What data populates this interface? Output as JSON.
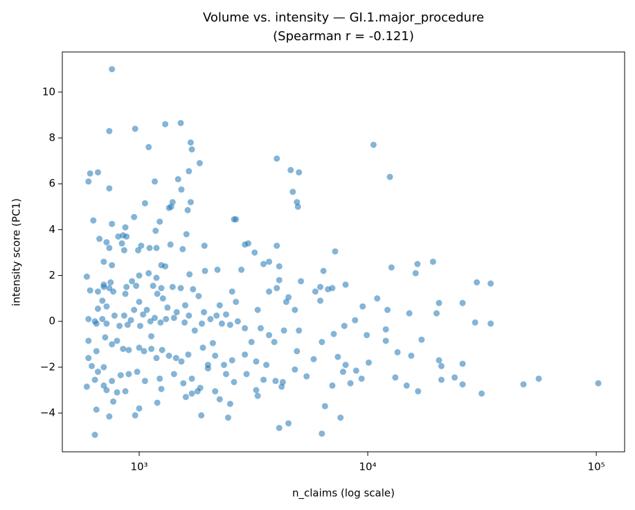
{
  "chart_data": {
    "type": "scatter",
    "title": "Volume vs. intensity — GI.1.major_procedure",
    "subtitle": "(Spearman r = -0.121)",
    "x_label": "n_claims (log scale)",
    "y_label": "intensity score (PC1)",
    "xscale": "log",
    "xlim": [
      461,
      133000
    ],
    "ylim": [
      -5.69,
      11.75
    ],
    "xticks": [
      {
        "value": 1000,
        "label": "10³"
      },
      {
        "value": 10000,
        "label": "10⁴"
      },
      {
        "value": 100000,
        "label": "10⁵"
      }
    ],
    "yticks": [
      {
        "value": -4,
        "label": "−4"
      },
      {
        "value": -2,
        "label": "−2"
      },
      0,
      2,
      4,
      6,
      8,
      10
    ],
    "grid": false,
    "x": [
      760,
      740,
      960,
      1300,
      1520,
      1680,
      1700,
      1100,
      10600,
      4000,
      12500,
      4600,
      5000,
      660,
      610,
      600,
      1170,
      1480,
      1650,
      1840,
      740,
      1530,
      4700,
      4900,
      4950,
      1060,
      1350,
      1380,
      1400,
      1680,
      1630,
      630,
      760,
      950,
      1230,
      2600,
      2650,
      870,
      1180,
      670,
      810,
      850,
      880,
      1610,
      720,
      840,
      1020,
      990,
      1370,
      1550,
      1930,
      2900,
      3000,
      4000,
      7200,
      3200,
      740,
      860,
      1110,
      1190,
      1300,
      1250,
      700,
      760,
      3500,
      3700,
      4100,
      6400,
      12700,
      16500,
      19300,
      16200,
      1940,
      2200,
      2800,
      1100,
      590,
      1000,
      1190,
      1250,
      1520,
      1660,
      4100,
      5100,
      8000,
      30000,
      34500,
      4000,
      5900,
      6200,
      6700,
      7000,
      700,
      740,
      610,
      660,
      700,
      750,
      770,
      880,
      930,
      970,
      1150,
      1200,
      1400,
      1720,
      2550,
      3700,
      11000,
      12200,
      9500,
      20500,
      26000,
      4500,
      4400,
      6200,
      4800,
      3300,
      2650,
      2250,
      1820,
      1590,
      1330,
      1270,
      1000,
      950,
      870,
      860,
      720,
      660,
      690,
      600,
      640,
      650,
      690,
      720,
      780,
      820,
      890,
      920,
      1010,
      1040,
      1080,
      1120,
      1130,
      1170,
      1240,
      1310,
      1420,
      1460,
      1580,
      1650,
      1750,
      1880,
      1920,
      2050,
      2180,
      2300,
      2400,
      2500,
      2700,
      2900,
      3100,
      3400,
      3700,
      3900,
      4300,
      5000,
      6300,
      7100,
      7900,
      8800,
      9900,
      17200,
      20000,
      15200,
      29500,
      34500,
      12000,
      600,
      650,
      710,
      760,
      800,
      850,
      900,
      1000,
      1050,
      1130,
      1190,
      1260,
      1350,
      1450,
      1530,
      1640,
      1900,
      2000,
      2150,
      2350,
      2550,
      2900,
      3250,
      3600,
      4900,
      5800,
      7400,
      8000,
      8900,
      10100,
      12000,
      13500,
      15500,
      20500,
      21000,
      26000,
      600,
      620,
      660,
      700,
      760,
      830,
      900,
      980,
      1060,
      1230,
      1420,
      1560,
      1700,
      1850,
      2000,
      2150,
      2400,
      2600,
      2950,
      3250,
      3500,
      3950,
      4200,
      4800,
      5400,
      7000,
      7800,
      8400,
      9400,
      13200,
      14800,
      16600,
      21000,
      24000,
      26000,
      31500,
      48000,
      56000,
      102000,
      590,
      640,
      700,
      720,
      800,
      870,
      1250,
      1600,
      1800,
      2250,
      2500,
      3300,
      4250,
      6500,
      7600,
      650,
      740,
      960,
      1000,
      1200,
      1870,
      2450,
      4100,
      4500,
      640,
      6300,
      770,
      1700,
      2100
    ],
    "series": [
      {
        "color": "#1f77b4",
        "values": [
          11.0,
          8.3,
          8.4,
          8.6,
          8.65,
          7.8,
          7.5,
          7.6,
          7.7,
          7.1,
          6.3,
          6.6,
          6.5,
          6.5,
          6.45,
          6.1,
          6.1,
          6.2,
          6.55,
          6.9,
          5.8,
          5.75,
          5.65,
          5.2,
          5.0,
          5.15,
          4.95,
          5.0,
          5.2,
          5.2,
          4.85,
          4.4,
          4.25,
          4.55,
          4.35,
          4.45,
          4.45,
          4.1,
          3.95,
          3.6,
          3.7,
          3.75,
          3.7,
          3.8,
          3.45,
          3.4,
          3.3,
          3.1,
          3.35,
          3.15,
          3.3,
          3.35,
          3.4,
          3.3,
          3.05,
          3.0,
          3.2,
          3.1,
          3.2,
          3.2,
          2.4,
          2.45,
          2.6,
          2.45,
          2.5,
          2.6,
          2.4,
          2.2,
          2.35,
          2.5,
          2.6,
          2.1,
          2.2,
          2.25,
          2.25,
          2.1,
          1.95,
          2.0,
          1.9,
          1.45,
          1.45,
          2.05,
          1.8,
          1.75,
          1.6,
          1.7,
          1.65,
          1.45,
          1.3,
          1.5,
          1.4,
          1.45,
          1.5,
          1.45,
          1.35,
          1.3,
          1.6,
          1.7,
          1.3,
          1.5,
          1.75,
          1.55,
          1.55,
          1.2,
          1.5,
          1.4,
          1.3,
          1.3,
          1.0,
          0.5,
          0.65,
          0.8,
          0.8,
          1.05,
          0.85,
          0.9,
          0.5,
          0.5,
          0.85,
          0.7,
          1.1,
          0.7,
          0.6,
          1.0,
          0.85,
          0.5,
          1.2,
          0.25,
          0.65,
          0.55,
          0.9,
          0.1,
          0.0,
          -0.1,
          0.1,
          -0.1,
          0.25,
          -0.2,
          -0.15,
          0.05,
          -0.2,
          0.3,
          0.5,
          0.0,
          -0.65,
          0.15,
          -0.05,
          0.1,
          0.15,
          0.4,
          -0.05,
          0.25,
          -0.4,
          -0.1,
          0.4,
          0.1,
          0.25,
          -0.1,
          0.3,
          -0.15,
          0.0,
          -0.3,
          -0.9,
          -0.3,
          -0.6,
          -0.9,
          -0.4,
          -0.4,
          -0.9,
          -0.55,
          -0.2,
          0.05,
          -0.6,
          -0.8,
          0.35,
          0.35,
          -0.05,
          -0.1,
          -0.35,
          -0.85,
          -1.3,
          -0.7,
          -1.0,
          -0.85,
          -1.2,
          -1.25,
          -1.15,
          -1.3,
          -1.2,
          -1.6,
          -1.25,
          -1.5,
          -1.6,
          -1.75,
          -1.45,
          -1.15,
          -1.9,
          -1.5,
          -1.9,
          -1.7,
          -1.45,
          -1.75,
          -1.9,
          -1.3,
          -1.65,
          -1.55,
          -1.9,
          -2.15,
          -1.8,
          -0.85,
          -1.35,
          -1.5,
          -1.7,
          -1.95,
          -1.85,
          -1.6,
          -1.95,
          -2.2,
          -2.0,
          -2.6,
          -2.35,
          -2.3,
          -2.2,
          -2.6,
          -2.5,
          -2.3,
          -2.7,
          -2.5,
          -2.9,
          -2.05,
          -3.05,
          -2.3,
          -2.65,
          -2.3,
          -3.0,
          -2.55,
          -2.6,
          -2.85,
          -2.1,
          -2.4,
          -2.8,
          -2.2,
          -2.7,
          -2.5,
          -2.45,
          -2.8,
          -3.05,
          -2.55,
          -2.45,
          -2.75,
          -3.15,
          -2.75,
          -2.5,
          -2.7,
          -2.85,
          -2.55,
          -2.8,
          -3.0,
          -3.1,
          -3.05,
          -2.95,
          -3.3,
          -3.05,
          -3.4,
          -3.6,
          -3.25,
          -2.65,
          -3.7,
          -4.2,
          -3.85,
          -4.15,
          -4.1,
          -3.8,
          -3.55,
          -4.1,
          -4.2,
          -4.65,
          -4.45,
          -4.95,
          -4.9,
          -3.5,
          -3.15,
          -0.95
        ]
      }
    ]
  }
}
